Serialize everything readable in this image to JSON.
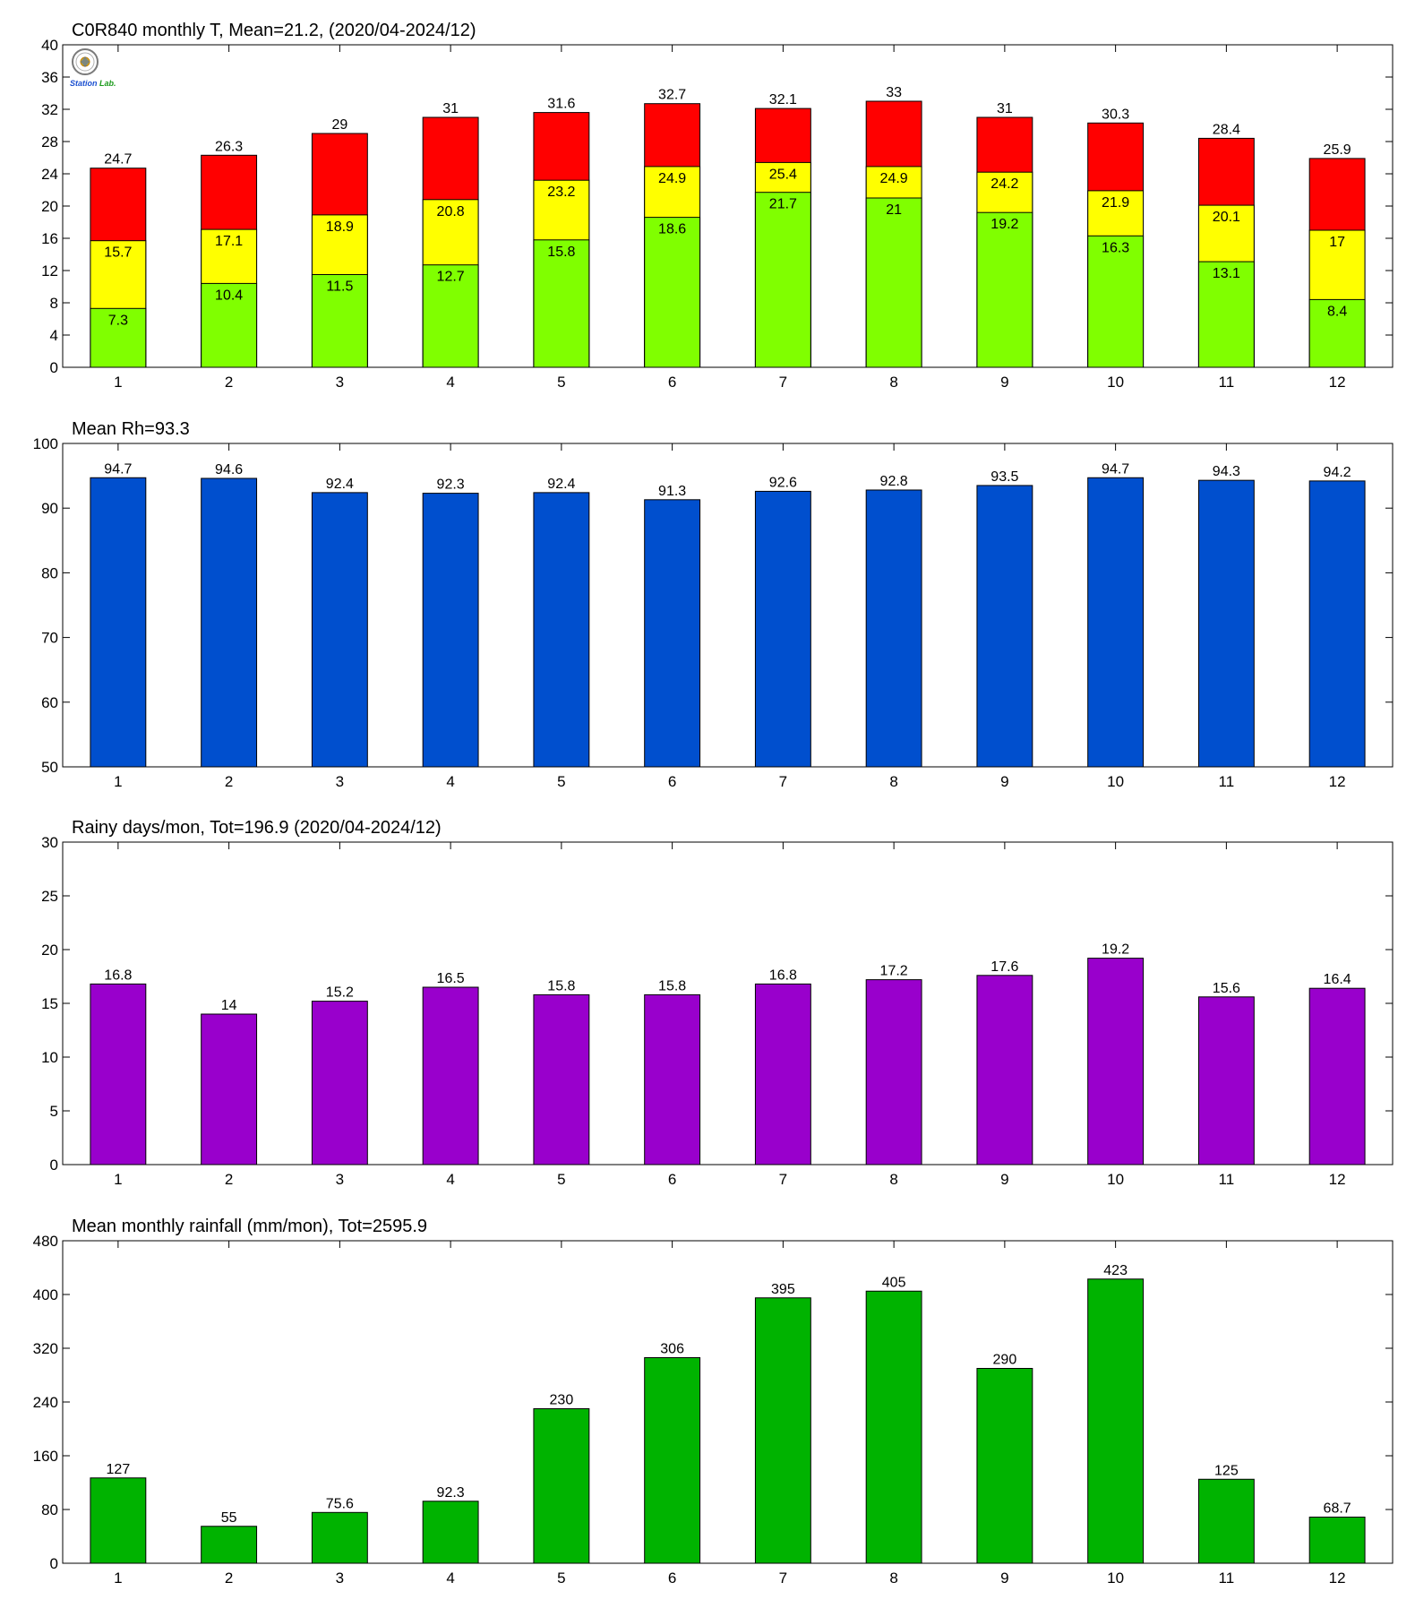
{
  "colors": {
    "min_bar": "#80ff00",
    "mean_bar": "#ffff00",
    "max_bar": "#ff0000",
    "rh_bar": "#004fce",
    "rainy_bar": "#9900cc",
    "rain_bar": "#00b300"
  },
  "logo": {
    "icon": "station-seal-icon",
    "text_a": "Station",
    "text_b": "Lab."
  },
  "chart_data": [
    {
      "type": "bar",
      "stacked_overlay": true,
      "title": "C0R840 monthly T, Mean=21.2, (2020/04-2024/12)",
      "categories": [
        "1",
        "2",
        "3",
        "4",
        "5",
        "6",
        "7",
        "8",
        "9",
        "10",
        "11",
        "12"
      ],
      "series": [
        {
          "values": [
            24.7,
            26.3,
            29,
            31,
            31.6,
            32.7,
            32.1,
            33,
            31,
            30.3,
            28.4,
            25.9
          ],
          "color": "#ff0000"
        },
        {
          "values": [
            15.7,
            17.1,
            18.9,
            20.8,
            23.2,
            24.9,
            25.4,
            24.9,
            24.2,
            21.9,
            20.1,
            17
          ],
          "color": "#ffff00"
        },
        {
          "values": [
            7.3,
            10.4,
            11.5,
            12.7,
            15.8,
            18.6,
            21.7,
            21,
            19.2,
            16.3,
            13.1,
            8.4
          ],
          "color": "#80ff00"
        }
      ],
      "ylim": [
        0,
        40
      ],
      "yticks": [
        0,
        4,
        8,
        12,
        16,
        20,
        24,
        28,
        32,
        36,
        40
      ],
      "data_labels": [
        [
          "24.7",
          "26.3",
          "29",
          "31",
          "31.6",
          "32.7",
          "32.1",
          "33",
          "31",
          "30.3",
          "28.4",
          "25.9"
        ],
        [
          "15.7",
          "17.1",
          "18.9",
          "20.8",
          "23.2",
          "24.9",
          "25.4",
          "24.9",
          "24.2",
          "21.9",
          "20.1",
          "17"
        ],
        [
          "7.3",
          "10.4",
          "11.5",
          "12.7",
          "15.8",
          "18.6",
          "21.7",
          "21",
          "19.2",
          "16.3",
          "13.1",
          "8.4"
        ]
      ],
      "grid": false,
      "legend": "none"
    },
    {
      "type": "bar",
      "title": "Mean Rh=93.3",
      "categories": [
        "1",
        "2",
        "3",
        "4",
        "5",
        "6",
        "7",
        "8",
        "9",
        "10",
        "11",
        "12"
      ],
      "values": [
        94.7,
        94.6,
        92.4,
        92.3,
        92.4,
        91.3,
        92.6,
        92.8,
        93.5,
        94.7,
        94.3,
        94.2
      ],
      "data_labels": [
        "94.7",
        "94.6",
        "92.4",
        "92.3",
        "92.4",
        "91.3",
        "92.6",
        "92.8",
        "93.5",
        "94.7",
        "94.3",
        "94.2"
      ],
      "color": "#004fce",
      "ylim": [
        50,
        100
      ],
      "yticks": [
        50,
        60,
        70,
        80,
        90,
        100
      ],
      "grid": false,
      "legend": "none"
    },
    {
      "type": "bar",
      "title": "Rainy days/mon, Tot=196.9 (2020/04-2024/12)",
      "categories": [
        "1",
        "2",
        "3",
        "4",
        "5",
        "6",
        "7",
        "8",
        "9",
        "10",
        "11",
        "12"
      ],
      "values": [
        16.8,
        14,
        15.2,
        16.5,
        15.8,
        15.8,
        16.8,
        17.2,
        17.6,
        19.2,
        15.6,
        16.4
      ],
      "data_labels": [
        "16.8",
        "14",
        "15.2",
        "16.5",
        "15.8",
        "15.8",
        "16.8",
        "17.2",
        "17.6",
        "19.2",
        "15.6",
        "16.4"
      ],
      "color": "#9900cc",
      "ylim": [
        0,
        30
      ],
      "yticks": [
        0,
        5,
        10,
        15,
        20,
        25,
        30
      ],
      "grid": false,
      "legend": "none"
    },
    {
      "type": "bar",
      "title": "Mean monthly rainfall (mm/mon), Tot=2595.9",
      "categories": [
        "1",
        "2",
        "3",
        "4",
        "5",
        "6",
        "7",
        "8",
        "9",
        "10",
        "11",
        "12"
      ],
      "values": [
        127,
        55,
        75.6,
        92.3,
        230,
        306,
        395,
        405,
        290,
        423,
        125,
        68.7
      ],
      "data_labels": [
        "127",
        "55",
        "75.6",
        "92.3",
        "230",
        "306",
        "395",
        "405",
        "290",
        "423",
        "125",
        "68.7"
      ],
      "color": "#00b300",
      "ylim": [
        0,
        480
      ],
      "yticks": [
        0,
        80,
        160,
        240,
        320,
        400,
        480
      ],
      "grid": false,
      "legend": "none"
    }
  ]
}
